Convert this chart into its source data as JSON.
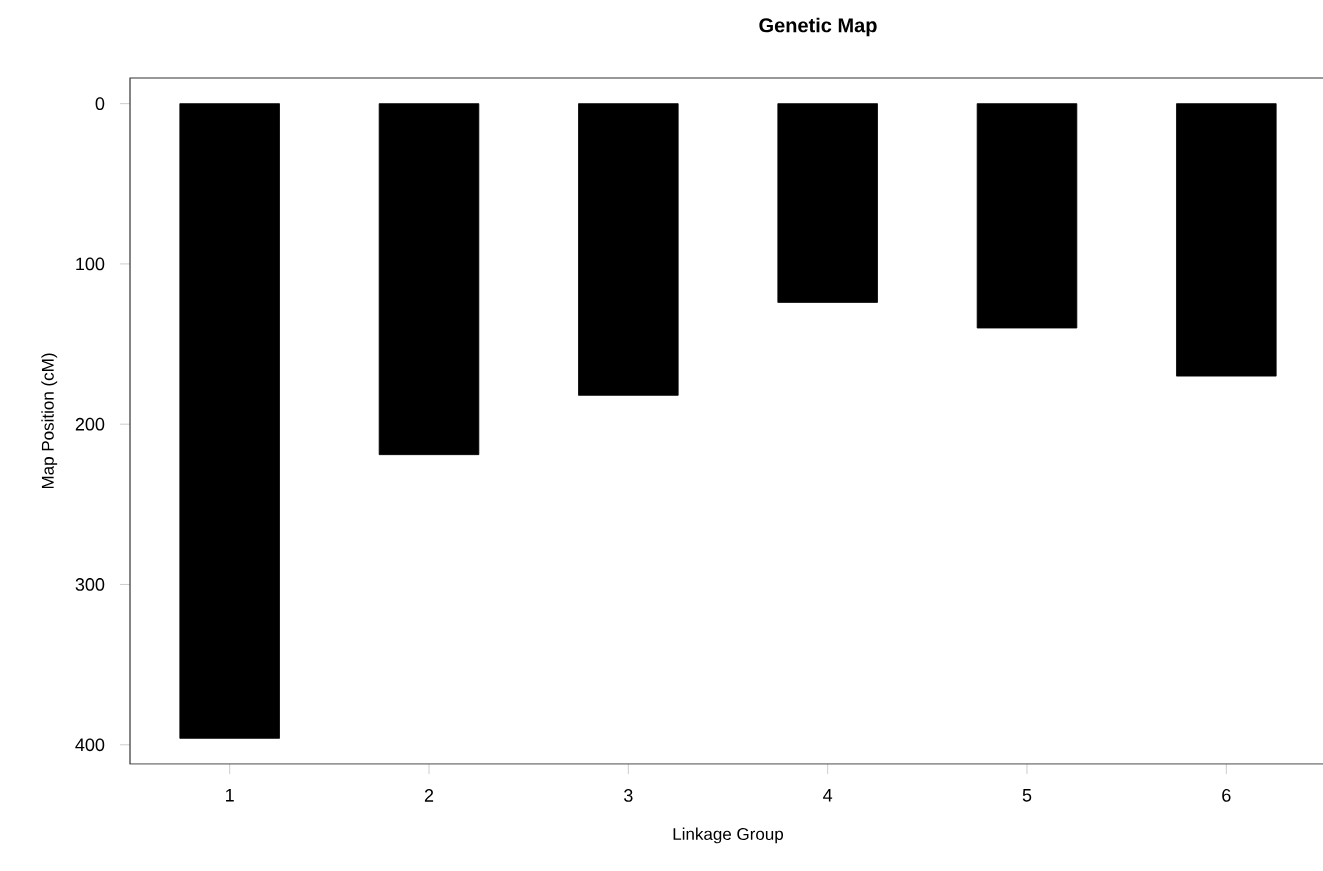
{
  "chart_data": {
    "type": "bar",
    "title": "Genetic Map",
    "xlabel": "Linkage Group",
    "ylabel": "Map Position (cM)",
    "categories": [
      "1",
      "2",
      "3",
      "4",
      "5",
      "6"
    ],
    "values": [
      396,
      219,
      182,
      124,
      140,
      170
    ],
    "color": "#000000",
    "ylim": [
      412,
      -16
    ],
    "yticks": [
      0,
      100,
      200,
      300,
      400
    ],
    "grid": false
  }
}
